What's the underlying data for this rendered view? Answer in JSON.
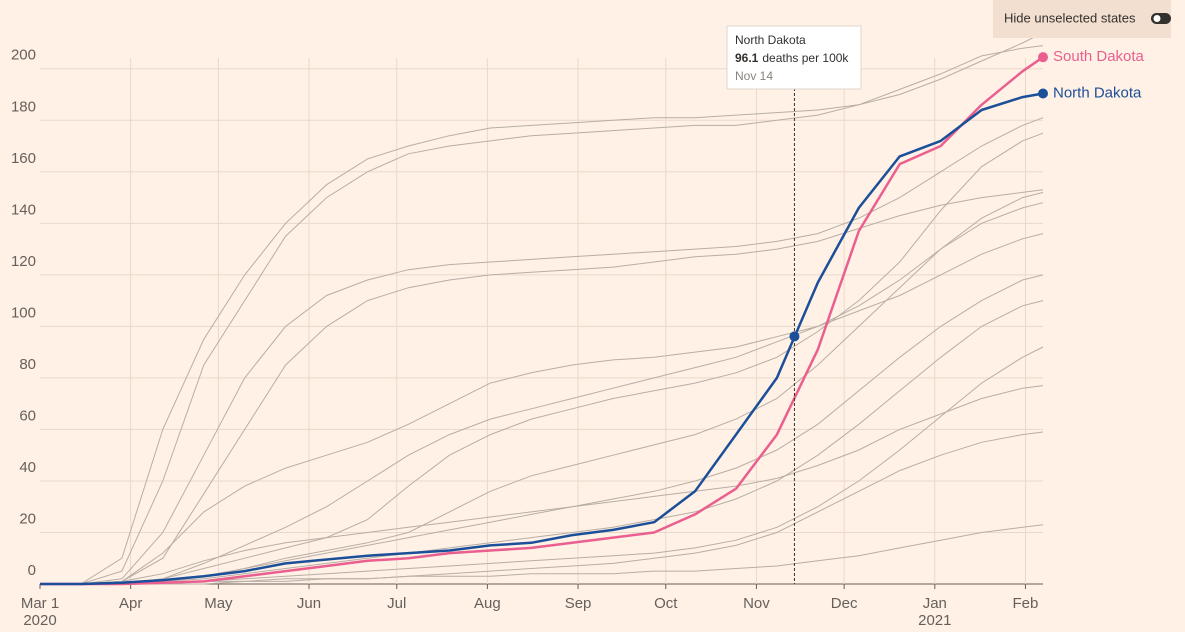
{
  "chart_data": {
    "type": "line",
    "toggle": "Hide unselected states",
    "x": [
      0,
      14,
      28,
      42,
      56,
      70,
      84,
      98,
      112,
      126,
      140,
      154,
      168,
      182,
      196,
      210,
      224,
      238,
      252,
      266,
      280,
      294,
      308,
      322,
      336,
      343
    ],
    "xlim": [
      0,
      343
    ],
    "xticks": [
      {
        "value": 0,
        "label": "Mar 1"
      },
      {
        "value": 31,
        "label": "Apr"
      },
      {
        "value": 61,
        "label": "May"
      },
      {
        "value": 92,
        "label": "Jun"
      },
      {
        "value": 122,
        "label": "Jul"
      },
      {
        "value": 153,
        "label": "Aug"
      },
      {
        "value": 184,
        "label": "Sep"
      },
      {
        "value": 214,
        "label": "Oct"
      },
      {
        "value": 245,
        "label": "Nov"
      },
      {
        "value": 275,
        "label": "Dec"
      },
      {
        "value": 306,
        "label": "Jan"
      },
      {
        "value": 337,
        "label": "Feb"
      }
    ],
    "year_labels": [
      {
        "value": 0,
        "label": "2020"
      },
      {
        "value": 306,
        "label": "2021"
      }
    ],
    "ylim": [
      0,
      210
    ],
    "yticks": [
      0,
      20,
      40,
      60,
      80,
      100,
      120,
      140,
      160,
      180,
      200
    ],
    "grid": true,
    "background_color": "#b7aea6",
    "background_series": [
      {
        "values": [
          0,
          0,
          10,
          60,
          95,
          120,
          140,
          155,
          165,
          170,
          174,
          177,
          178,
          179,
          180,
          181,
          181,
          182,
          183,
          184,
          186,
          190,
          196,
          203,
          210,
          214
        ]
      },
      {
        "values": [
          0,
          0,
          5,
          40,
          85,
          110,
          135,
          150,
          160,
          167,
          170,
          172,
          174,
          175,
          176,
          177,
          178,
          178,
          180,
          182,
          186,
          192,
          198,
          205,
          208,
          209
        ]
      },
      {
        "values": [
          0,
          0,
          2,
          20,
          50,
          80,
          100,
          112,
          118,
          122,
          124,
          125,
          126,
          127,
          128,
          129,
          130,
          131,
          133,
          136,
          142,
          150,
          160,
          170,
          178,
          181
        ]
      },
      {
        "values": [
          0,
          0,
          1,
          10,
          35,
          60,
          85,
          100,
          110,
          115,
          118,
          120,
          121,
          122,
          123,
          125,
          127,
          128,
          130,
          133,
          138,
          143,
          147,
          150,
          152,
          153
        ]
      },
      {
        "values": [
          0,
          0,
          1,
          12,
          28,
          38,
          45,
          50,
          55,
          62,
          70,
          78,
          82,
          85,
          87,
          88,
          90,
          92,
          96,
          100,
          106,
          112,
          120,
          128,
          134,
          136
        ]
      },
      {
        "values": [
          0,
          0,
          0,
          2,
          6,
          10,
          14,
          18,
          25,
          38,
          50,
          58,
          64,
          68,
          72,
          75,
          78,
          82,
          88,
          98,
          110,
          125,
          145,
          162,
          172,
          175
        ]
      },
      {
        "values": [
          0,
          0,
          0,
          1,
          3,
          6,
          9,
          12,
          15,
          18,
          21,
          24,
          27,
          30,
          33,
          36,
          40,
          45,
          52,
          62,
          75,
          88,
          100,
          110,
          118,
          120
        ]
      },
      {
        "values": [
          0,
          0,
          0,
          1,
          2,
          4,
          6,
          8,
          10,
          12,
          14,
          16,
          18,
          20,
          22,
          25,
          28,
          33,
          40,
          50,
          62,
          75,
          88,
          100,
          108,
          110
        ]
      },
      {
        "values": [
          0,
          0,
          0,
          0,
          1,
          2,
          3,
          4,
          5,
          6,
          7,
          8,
          9,
          10,
          11,
          12,
          14,
          17,
          22,
          30,
          40,
          52,
          65,
          78,
          88,
          92
        ]
      },
      {
        "values": [
          0,
          0,
          0,
          0,
          1,
          1,
          2,
          2,
          2,
          3,
          3,
          3,
          4,
          4,
          4,
          5,
          5,
          6,
          7,
          9,
          11,
          14,
          17,
          20,
          22,
          23
        ]
      },
      {
        "values": [
          0,
          0,
          0,
          2,
          8,
          15,
          22,
          30,
          40,
          50,
          58,
          64,
          68,
          72,
          76,
          80,
          84,
          88,
          94,
          100,
          108,
          118,
          130,
          140,
          146,
          148
        ]
      },
      {
        "values": [
          0,
          0,
          1,
          4,
          9,
          13,
          16,
          18,
          20,
          22,
          24,
          26,
          28,
          30,
          32,
          34,
          36,
          38,
          41,
          46,
          52,
          60,
          66,
          72,
          76,
          77
        ]
      },
      {
        "values": [
          0,
          0,
          0,
          1,
          3,
          6,
          10,
          13,
          16,
          20,
          28,
          36,
          42,
          46,
          50,
          54,
          58,
          64,
          72,
          85,
          100,
          115,
          130,
          142,
          150,
          152
        ]
      },
      {
        "values": [
          0,
          0,
          0,
          0,
          0,
          1,
          1,
          2,
          2,
          3,
          4,
          5,
          6,
          7,
          8,
          10,
          12,
          15,
          20,
          28,
          36,
          44,
          50,
          55,
          58,
          59
        ]
      }
    ],
    "series": [
      {
        "name": "South Dakota",
        "color": "#ea5f8f",
        "values": [
          0,
          0,
          0,
          0.5,
          1,
          3,
          5,
          7,
          9,
          10,
          12,
          13,
          14,
          16,
          18,
          20,
          27,
          37,
          58,
          91,
          137,
          163,
          170,
          186,
          199,
          204.5
        ]
      },
      {
        "name": "North Dakota",
        "color": "#1c4f99",
        "values": [
          0,
          0,
          0.5,
          1.5,
          3,
          5,
          8,
          9.5,
          11,
          12,
          13,
          15,
          16,
          19,
          21,
          24,
          36,
          58,
          80,
          117,
          146,
          166,
          172,
          184,
          189,
          190.4
        ]
      }
    ],
    "annotation": {
      "x": 258,
      "value": 96.1,
      "text": "deaths per 100k",
      "date": "Nov 14"
    }
  }
}
